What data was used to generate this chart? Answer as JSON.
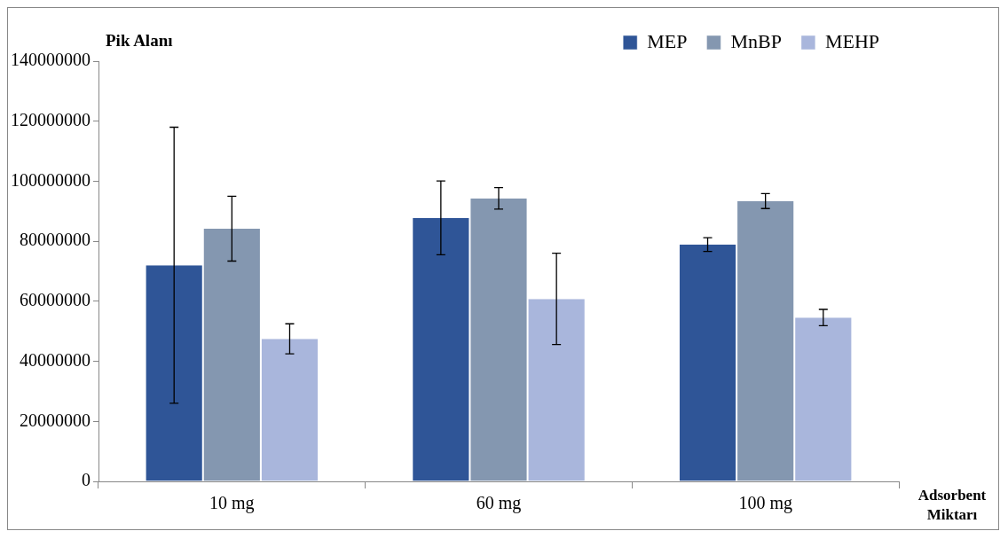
{
  "chart_data": {
    "type": "bar",
    "ylabel": "Pik Alanı",
    "xlabel": "Adsorbent Miktarı",
    "categories": [
      "10 mg",
      "60 mg",
      "100 mg"
    ],
    "series": [
      {
        "name": "MEP",
        "color": "#2f5597",
        "values": [
          72000000,
          87800000,
          78900000
        ],
        "errors": [
          46000000,
          12300000,
          2300000
        ]
      },
      {
        "name": "MnBP",
        "color": "#8497b0",
        "values": [
          84200000,
          94300000,
          93400000
        ],
        "errors": [
          10800000,
          3600000,
          2500000
        ]
      },
      {
        "name": "MEHP",
        "color": "#a9b6dc",
        "values": [
          47500000,
          60800000,
          54600000
        ],
        "errors": [
          5000000,
          15200000,
          2700000
        ]
      }
    ],
    "ylim": [
      0,
      140000000
    ],
    "yticks": [
      0,
      20000000,
      40000000,
      60000000,
      80000000,
      100000000,
      120000000,
      140000000
    ],
    "grid": false,
    "legend": "top right"
  }
}
